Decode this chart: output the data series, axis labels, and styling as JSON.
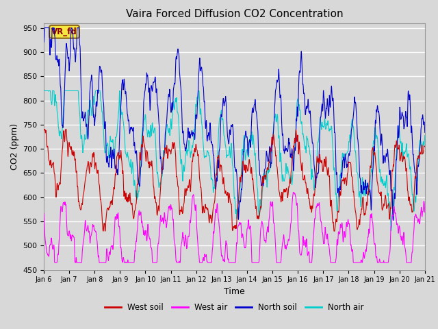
{
  "title": "Vaira Forced Diffusion CO2 Concentration",
  "xlabel": "Time",
  "ylabel": "CO2 (ppm)",
  "ylim": [
    450,
    960
  ],
  "yticks": [
    450,
    500,
    550,
    600,
    650,
    700,
    750,
    800,
    850,
    900,
    950
  ],
  "annotation_text": "VR_fd",
  "colors": {
    "west_soil": "#cc0000",
    "west_air": "#ff00ff",
    "north_soil": "#0000cc",
    "north_air": "#00cccc"
  },
  "legend_labels": [
    "West soil",
    "West air",
    "North soil",
    "North air"
  ],
  "background_color": "#d8d8d8",
  "n_days": 15,
  "start_day": 6,
  "ppd": 144,
  "seed": 7
}
